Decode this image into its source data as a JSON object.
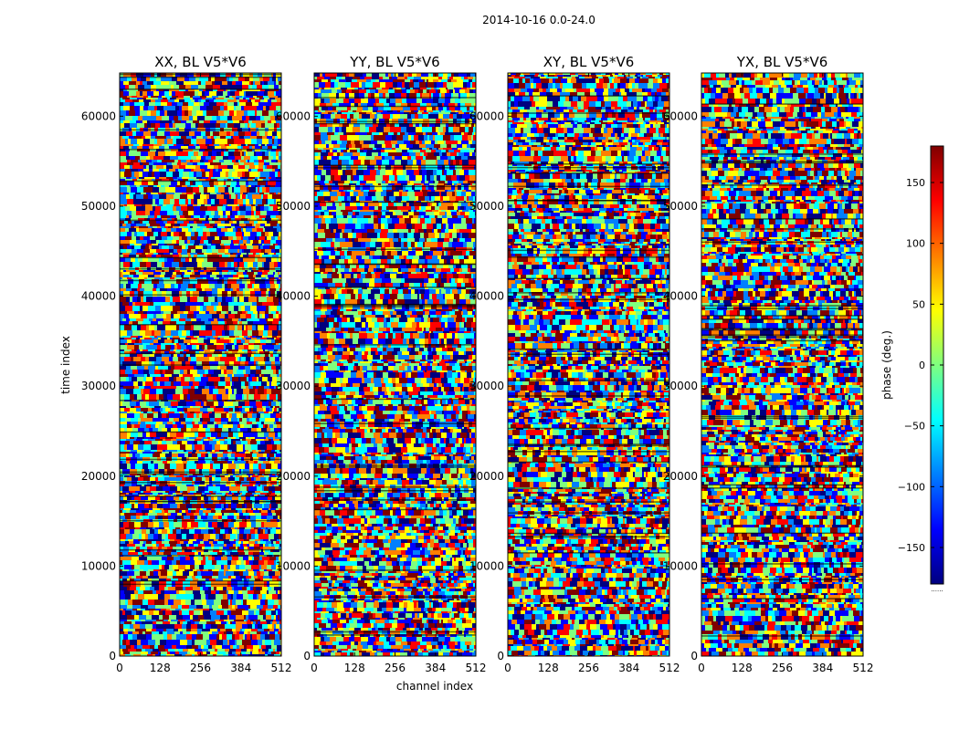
{
  "figure": {
    "suptitle": "2014-10-16 0.0-24.0",
    "xlabel": "channel index",
    "ylabel": "time index"
  },
  "chart_data": {
    "type": "heatmap",
    "title": "2014-10-16 0.0-24.0",
    "xlabel": "channel index",
    "ylabel": "time index",
    "xlim": [
      0,
      512
    ],
    "ylim": [
      0,
      64800
    ],
    "xticks": [
      0,
      128,
      256,
      384,
      512
    ],
    "yticks": [
      0,
      10000,
      20000,
      30000,
      40000,
      50000,
      60000
    ],
    "panels": [
      {
        "title": "XX, BL V5*V6",
        "polarization": "XX",
        "baseline": "V5*V6"
      },
      {
        "title": "YY, BL V5*V6",
        "polarization": "YY",
        "baseline": "V5*V6"
      },
      {
        "title": "XY, BL V5*V6",
        "polarization": "XY",
        "baseline": "V5*V6"
      },
      {
        "title": "YX, BL V5*V6",
        "polarization": "YX",
        "baseline": "V5*V6"
      }
    ],
    "colorbar": {
      "label": "phase (deg.)",
      "range": [
        -180,
        180
      ],
      "ticks": [
        -150,
        -100,
        -50,
        0,
        50,
        100,
        150
      ],
      "colormap": "jet",
      "extension_label": "......"
    }
  },
  "colors": {
    "jet": [
      "#00007f",
      "#0000ff",
      "#007fff",
      "#00ffff",
      "#7fff7f",
      "#ffff00",
      "#ff7f00",
      "#ff0000",
      "#7f0000"
    ],
    "axis": "#000000",
    "background": "#ffffff"
  }
}
